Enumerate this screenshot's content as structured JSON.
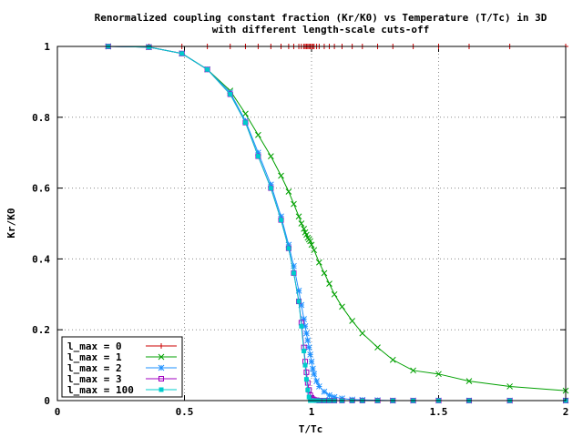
{
  "chart_data": {
    "type": "line",
    "title_line1": "Renormalized coupling constant fraction (Kr/K0) vs Temperature (T/Tc) in 3D",
    "title_line2": "with different length-scale cuts-off",
    "xlabel": "T/Tc",
    "ylabel": "Kr/K0",
    "xlim": [
      0,
      2
    ],
    "ylim": [
      0,
      1
    ],
    "xticks": [
      0,
      0.5,
      1,
      1.5,
      2
    ],
    "yticks": [
      0,
      0.2,
      0.4,
      0.6,
      0.8,
      1
    ],
    "xtick_labels": [
      "0",
      "0.5",
      "1",
      "1.5",
      "2"
    ],
    "ytick_labels": [
      "0",
      "0.2",
      "0.4",
      "0.6",
      "0.8",
      "1"
    ],
    "grid": true,
    "legend_position": "bottom-left",
    "series": [
      {
        "name": "l_max = 0",
        "color": "#cc0000",
        "marker": "plus",
        "x": [
          0.2,
          0.36,
          0.49,
          0.59,
          0.68,
          0.74,
          0.79,
          0.84,
          0.88,
          0.91,
          0.93,
          0.95,
          0.96,
          0.97,
          0.975,
          0.98,
          0.985,
          0.99,
          0.995,
          1.0,
          1.005,
          1.01,
          1.02,
          1.03,
          1.05,
          1.07,
          1.09,
          1.12,
          1.16,
          1.2,
          1.26,
          1.32,
          1.4,
          1.5,
          1.62,
          1.78,
          2.0
        ],
        "y": [
          1,
          1,
          1,
          1,
          1,
          1,
          1,
          1,
          1,
          1,
          1,
          1,
          1,
          1,
          1,
          1,
          1,
          1,
          1,
          1,
          1,
          1,
          1,
          1,
          1,
          1,
          1,
          1,
          1,
          1,
          1,
          1,
          1,
          1,
          1,
          1,
          1
        ]
      },
      {
        "name": "l_max = 1",
        "color": "#00a000",
        "marker": "cross",
        "x": [
          0.2,
          0.36,
          0.49,
          0.59,
          0.68,
          0.74,
          0.79,
          0.84,
          0.88,
          0.91,
          0.93,
          0.95,
          0.96,
          0.97,
          0.975,
          0.98,
          0.985,
          0.99,
          0.995,
          1.0,
          1.01,
          1.03,
          1.05,
          1.07,
          1.09,
          1.12,
          1.16,
          1.2,
          1.26,
          1.32,
          1.4,
          1.5,
          1.62,
          1.78,
          2.0
        ],
        "y": [
          1.0,
          0.998,
          0.98,
          0.935,
          0.875,
          0.81,
          0.75,
          0.69,
          0.635,
          0.59,
          0.555,
          0.52,
          0.5,
          0.485,
          0.475,
          0.468,
          0.46,
          0.455,
          0.45,
          0.44,
          0.425,
          0.39,
          0.36,
          0.33,
          0.3,
          0.265,
          0.225,
          0.19,
          0.15,
          0.115,
          0.085,
          0.075,
          0.055,
          0.04,
          0.028
        ]
      },
      {
        "name": "l_max = 2",
        "color": "#1e90ff",
        "marker": "star",
        "x": [
          0.2,
          0.36,
          0.49,
          0.59,
          0.68,
          0.74,
          0.79,
          0.84,
          0.88,
          0.91,
          0.93,
          0.95,
          0.96,
          0.97,
          0.975,
          0.98,
          0.985,
          0.99,
          0.995,
          1.0,
          1.005,
          1.01,
          1.02,
          1.03,
          1.05,
          1.07,
          1.09,
          1.12,
          1.16,
          1.2,
          1.26,
          1.32,
          1.4,
          1.5,
          1.62,
          1.78,
          2.0
        ],
        "y": [
          1.0,
          0.998,
          0.98,
          0.935,
          0.87,
          0.79,
          0.7,
          0.61,
          0.52,
          0.44,
          0.38,
          0.31,
          0.27,
          0.23,
          0.21,
          0.19,
          0.17,
          0.15,
          0.13,
          0.11,
          0.09,
          0.075,
          0.055,
          0.04,
          0.025,
          0.015,
          0.01,
          0.006,
          0.003,
          0.002,
          0.001,
          0.0,
          0.0,
          0.0,
          0.0,
          0.0,
          0.0
        ]
      },
      {
        "name": "l_max = 3",
        "color": "#a000c0",
        "marker": "square-open",
        "x": [
          0.2,
          0.36,
          0.49,
          0.59,
          0.68,
          0.74,
          0.79,
          0.84,
          0.88,
          0.91,
          0.93,
          0.95,
          0.96,
          0.97,
          0.975,
          0.98,
          0.985,
          0.99,
          0.995,
          1.0,
          1.005,
          1.01,
          1.02,
          1.03,
          1.05,
          1.07,
          1.09,
          1.12,
          1.16,
          1.2,
          1.26,
          1.32,
          1.4,
          1.5,
          1.62,
          1.78,
          2.0
        ],
        "y": [
          1.0,
          0.998,
          0.98,
          0.935,
          0.865,
          0.785,
          0.69,
          0.6,
          0.51,
          0.43,
          0.36,
          0.28,
          0.22,
          0.15,
          0.11,
          0.08,
          0.05,
          0.03,
          0.015,
          0.008,
          0.004,
          0.002,
          0.001,
          0.0,
          0.0,
          0.0,
          0.0,
          0.0,
          0.0,
          0.0,
          0.0,
          0.0,
          0.0,
          0.0,
          0.0,
          0.0,
          0.0
        ]
      },
      {
        "name": "l_max = 100",
        "color": "#00cccc",
        "marker": "square-filled",
        "x": [
          0.2,
          0.36,
          0.49,
          0.59,
          0.68,
          0.74,
          0.79,
          0.84,
          0.88,
          0.91,
          0.93,
          0.95,
          0.96,
          0.97,
          0.975,
          0.98,
          0.985,
          0.99,
          0.995,
          1.0,
          1.005,
          1.01,
          1.02,
          1.03,
          1.05,
          1.07,
          1.09,
          1.12,
          1.16,
          1.2,
          1.26,
          1.32,
          1.4,
          1.5,
          1.62,
          1.78,
          2.0
        ],
        "y": [
          1.0,
          0.998,
          0.98,
          0.935,
          0.865,
          0.785,
          0.69,
          0.6,
          0.51,
          0.43,
          0.36,
          0.28,
          0.21,
          0.14,
          0.1,
          0.06,
          0.03,
          0.01,
          0.0,
          0.0,
          0.0,
          0.0,
          0.0,
          0.0,
          0.0,
          0.0,
          0.0,
          0.0,
          0.0,
          0.0,
          0.0,
          0.0,
          0.0,
          0.0,
          0.0,
          0.0,
          0.0
        ]
      }
    ]
  }
}
